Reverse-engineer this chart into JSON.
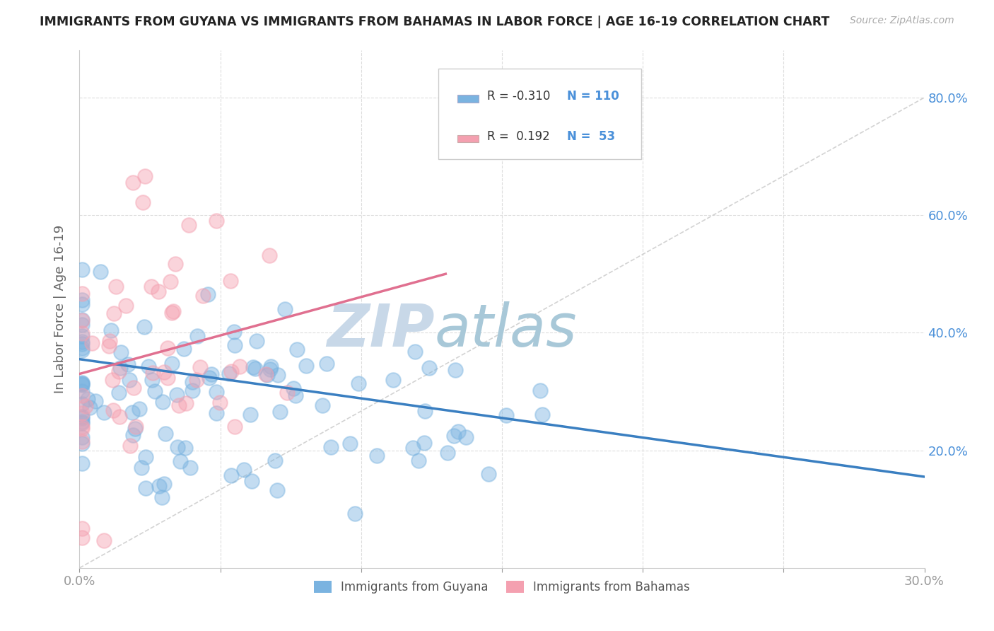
{
  "title": "IMMIGRANTS FROM GUYANA VS IMMIGRANTS FROM BAHAMAS IN LABOR FORCE | AGE 16-19 CORRELATION CHART",
  "source": "Source: ZipAtlas.com",
  "ylabel": "In Labor Force | Age 16-19",
  "xlim": [
    0.0,
    0.3
  ],
  "ylim": [
    0.0,
    0.88
  ],
  "guyana_color": "#7ab3e0",
  "bahamas_color": "#f4a0b0",
  "guyana_line_color": "#3a7fc1",
  "bahamas_line_color": "#e07090",
  "ref_line_color": "#c8c8c8",
  "watermark_zip": "ZIP",
  "watermark_atlas": "atlas",
  "watermark_color_zip": "#c8d8e8",
  "watermark_color_atlas": "#a8c8d8",
  "legend_R_guyana": "-0.310",
  "legend_N_guyana": "110",
  "legend_R_bahamas": "0.192",
  "legend_N_bahamas": "53",
  "background_color": "#ffffff",
  "grid_color": "#dddddd",
  "title_color": "#222222",
  "tick_color": "#4a90d9",
  "axis_label_color": "#666666",
  "guyana_trend_x0": 0.0,
  "guyana_trend_y0": 0.355,
  "guyana_trend_x1": 0.3,
  "guyana_trend_y1": 0.155,
  "bahamas_trend_x0": 0.0,
  "bahamas_trend_y0": 0.33,
  "bahamas_trend_x1": 0.13,
  "bahamas_trend_y1": 0.5
}
